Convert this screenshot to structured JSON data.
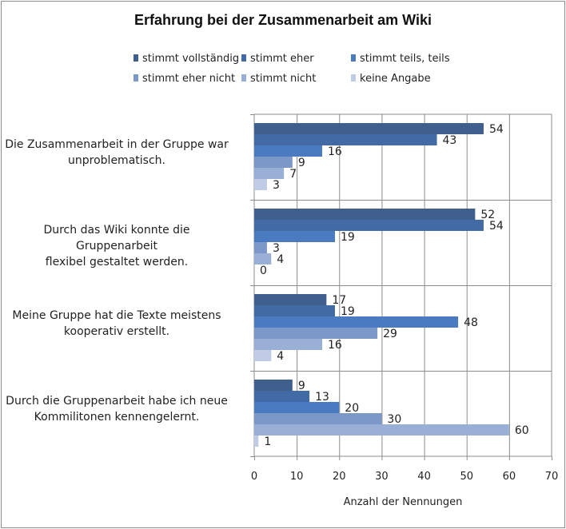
{
  "chart_data": {
    "type": "bar",
    "orientation": "horizontal",
    "title": "Erfahrung bei der Zusammenarbeit am Wiki",
    "xlabel": "Anzahl der Nennungen",
    "ylabel": "",
    "xlim": [
      0,
      70
    ],
    "x_ticks": [
      "0",
      "10",
      "20",
      "30",
      "40",
      "50",
      "60",
      "70"
    ],
    "grid": true,
    "legend_position": "top",
    "categories": [
      [
        "Die Zusammenarbeit in der Gruppe war",
        "unproblematisch."
      ],
      [
        "Durch das Wiki konnte die Gruppenarbeit",
        "flexibel gestaltet werden."
      ],
      [
        "Meine Gruppe hat die Texte meistens",
        "kooperativ erstellt."
      ],
      [
        "Durch die Gruppenarbeit habe ich neue",
        "Kommilitonen kennengelernt."
      ]
    ],
    "series": [
      {
        "name": "stimmt vollständig",
        "color": "#3f5f8f",
        "values": [
          54,
          52,
          17,
          9
        ]
      },
      {
        "name": "stimmt eher",
        "color": "#426aa4",
        "values": [
          43,
          54,
          19,
          13
        ]
      },
      {
        "name": "stimmt teils, teils",
        "color": "#4a7bc0",
        "values": [
          16,
          19,
          48,
          20
        ]
      },
      {
        "name": "stimmt eher nicht",
        "color": "#7b98c9",
        "values": [
          9,
          3,
          29,
          30
        ]
      },
      {
        "name": "stimmt nicht",
        "color": "#9aafd6",
        "values": [
          7,
          4,
          16,
          60
        ]
      },
      {
        "name": "keine Angabe",
        "color": "#c0cce6",
        "values": [
          3,
          0,
          4,
          1
        ]
      }
    ]
  }
}
